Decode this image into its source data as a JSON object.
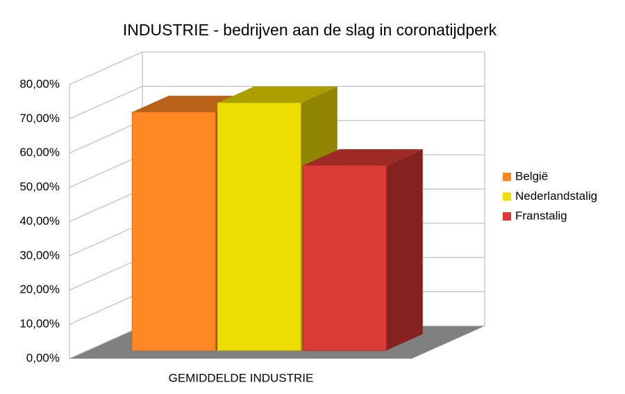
{
  "chart_data": {
    "type": "bar",
    "title": "INDUSTRIE  - bedrijven aan de slag in coronatijdperk",
    "categories": [
      "GEMIDDELDE INDUSTRIE"
    ],
    "series": [
      {
        "name": "België",
        "color": "#ff8722",
        "values": [
          69.6
        ]
      },
      {
        "name": "Nederlandstalig",
        "color": "#eedd00",
        "values": [
          72.3
        ]
      },
      {
        "name": "Franstalig",
        "color": "#dc3b35",
        "values": [
          54
        ]
      }
    ],
    "ylim": [
      0,
      80
    ],
    "yticks": [
      {
        "value": 0,
        "label": "0,00%"
      },
      {
        "value": 10,
        "label": "10,00%"
      },
      {
        "value": 20,
        "label": "20,00%"
      },
      {
        "value": 30,
        "label": "30,00%"
      },
      {
        "value": 40,
        "label": "40,00%"
      },
      {
        "value": 50,
        "label": "50,00%"
      },
      {
        "value": 60,
        "label": "60,00%"
      },
      {
        "value": 70,
        "label": "70,00%"
      },
      {
        "value": 80,
        "label": "80,00%"
      }
    ],
    "grid": true,
    "legend": "right"
  }
}
